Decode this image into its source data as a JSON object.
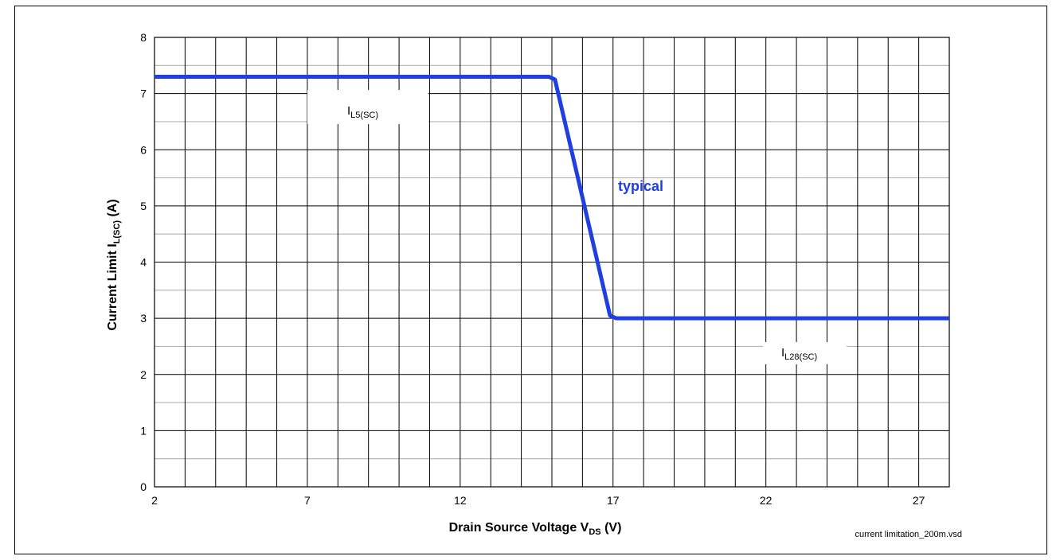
{
  "chart_data": {
    "type": "line",
    "xlabel_main": "Drain Source Voltage V",
    "xlabel_sub": "DS",
    "xlabel_unit": " (V)",
    "ylabel_main": "Current Limit I",
    "ylabel_sub": "L(SC)",
    "ylabel_unit": " (A)",
    "xlim": [
      2,
      28
    ],
    "ylim": [
      0,
      8
    ],
    "x_ticks": [
      2,
      7,
      12,
      17,
      22,
      27
    ],
    "y_ticks": [
      0,
      1,
      2,
      3,
      4,
      5,
      6,
      7,
      8
    ],
    "x_minor_step": 1,
    "y_minor_step": 0.5,
    "grid": true,
    "series": [
      {
        "name": "typical",
        "color": "#1f3fe0",
        "x": [
          2,
          14.9,
          15.1,
          16.9,
          17.1,
          28
        ],
        "y": [
          7.3,
          7.3,
          7.25,
          3.05,
          3.0,
          3.0
        ]
      }
    ],
    "annotations": {
      "il5_main": "I",
      "il5_sub": "L5(SC)",
      "il28_main": "I",
      "il28_sub": "L28(SC)",
      "typical": "typical"
    }
  },
  "footer": {
    "filename": "current limitation_200m.vsd"
  }
}
